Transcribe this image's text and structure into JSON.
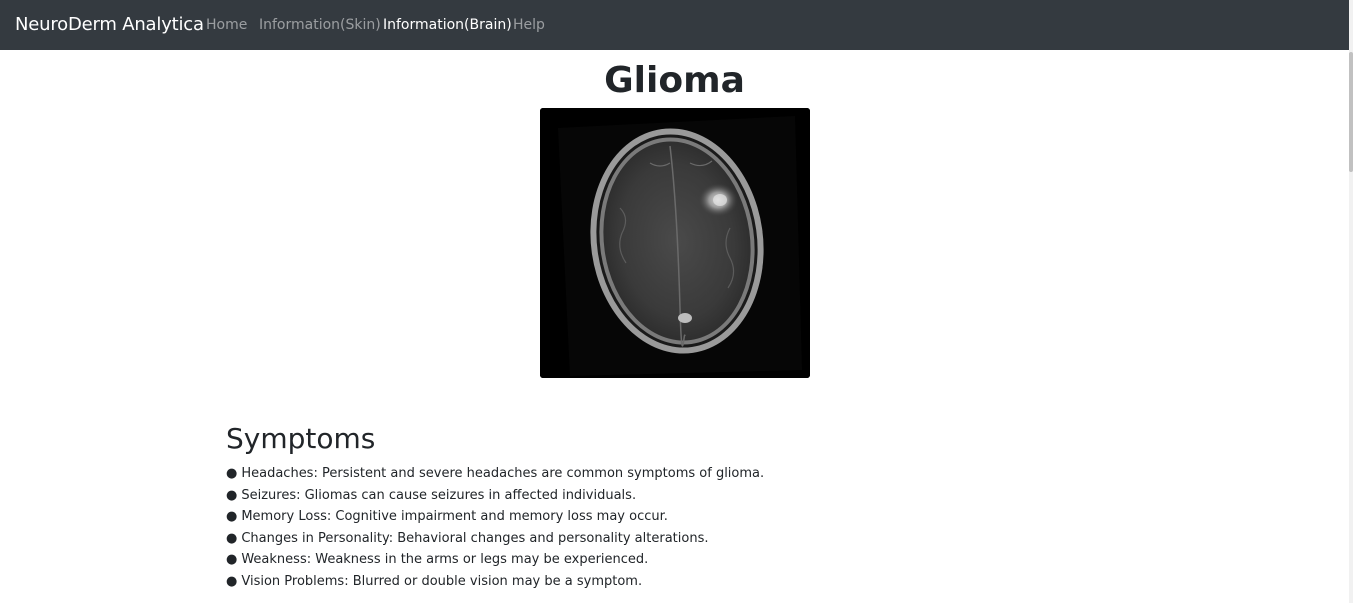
{
  "navbar": {
    "brand": "NeuroDerm Analytica",
    "links": [
      {
        "label": "Home",
        "active": false
      },
      {
        "label": "Information(Skin)",
        "active": false
      },
      {
        "label": "Information(Brain)",
        "active": true
      },
      {
        "label": "Help",
        "active": false
      }
    ]
  },
  "page": {
    "title": "Glioma",
    "image": {
      "icon": "brain-mri-scan-image"
    }
  },
  "symptoms": {
    "heading": "Symptoms",
    "bullet": "●",
    "items": [
      "Headaches: Persistent and severe headaches are common symptoms of glioma.",
      "Seizures: Gliomas can cause seizures in affected individuals.",
      "Memory Loss: Cognitive impairment and memory loss may occur.",
      "Changes in Personality: Behavioral changes and personality alterations.",
      "Weakness: Weakness in the arms or legs may be experienced.",
      "Vision Problems: Blurred or double vision may be a symptom."
    ]
  },
  "colors": {
    "navbar_bg": "#343a40",
    "nav_inactive": "rgba(255,255,255,0.5)",
    "nav_active": "#ffffff",
    "text": "#212529"
  }
}
